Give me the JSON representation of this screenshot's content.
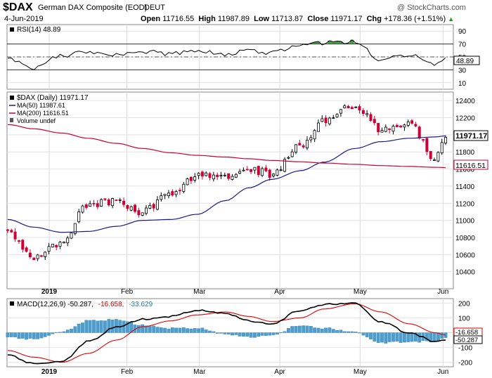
{
  "header": {
    "symbol": "$DAX",
    "name": "German DAX Composite (EOD)",
    "exchange": "DEUT",
    "watermark": "@ StockCharts.com",
    "date": "4-Jun-2019",
    "open_label": "Open",
    "open": "11716.55",
    "high_label": "High",
    "high": "11987.89",
    "low_label": "Low",
    "low": "11713.87",
    "close_label": "Close",
    "close": "11971.17",
    "chg_label": "Chg",
    "chg": "+178.36 (+1.51%)",
    "chg_arrow": "▲"
  },
  "rsi_panel": {
    "legend": "RSI(14) 48.89",
    "value_tag": "48.89",
    "ticks": [
      90,
      70,
      50,
      30,
      10
    ],
    "upper_band": 70,
    "lower_band": 30,
    "mid": 50
  },
  "price_panel": {
    "legend_main": "$DAX (Daily) 11971.17",
    "legend_ma50": "MA(50) 11987.61",
    "legend_ma200": "MA(200) 11616.51",
    "legend_volume": "Volume undef",
    "close_tag": "11971.17",
    "ma200_tag": "11616.51",
    "ticks": [
      12400,
      12200,
      12000,
      11800,
      11600,
      11400,
      11200,
      11000,
      10800,
      10600,
      10400
    ]
  },
  "macd_panel": {
    "legend_main": "MACD(12,26,9) -50.287,",
    "legend_signal": "-16.658,",
    "legend_hist": "-33.629",
    "ticks": [
      200,
      100,
      0,
      -100,
      -200
    ],
    "tag_signal": "-16.658",
    "tag_macd": "-50.287"
  },
  "month_labels": [
    "2019",
    "Feb",
    "Mar",
    "Apr",
    "May",
    "Jun"
  ],
  "colors": {
    "up": "#000000",
    "down": "#cc0033",
    "ma50": "#1a1a8c",
    "ma200": "#cc0033",
    "rsi_fill": "#2e8b2e",
    "macd_line": "#000000",
    "macd_signal": "#e00000",
    "histogram": "#4a9fd0"
  },
  "chart_data": [
    {
      "type": "line",
      "title": "RSI(14)",
      "ylim": [
        0,
        100
      ],
      "x": [
        "2018-12-17",
        "2018-12-27",
        "2019-01-07",
        "2019-01-17",
        "2019-01-28",
        "2019-02-07",
        "2019-02-18",
        "2019-02-28",
        "2019-03-11",
        "2019-03-20",
        "2019-03-29",
        "2019-04-09",
        "2019-04-18",
        "2019-04-30",
        "2019-05-10",
        "2019-05-21",
        "2019-05-31",
        "2019-06-04"
      ],
      "values": [
        48,
        33,
        52,
        57,
        52,
        58,
        55,
        60,
        54,
        60,
        56,
        68,
        72,
        73,
        46,
        53,
        38,
        48.89
      ]
    },
    {
      "type": "line",
      "title": "$DAX (Daily)",
      "ylim": [
        10200,
        12500
      ],
      "x": [
        "2018-12-17",
        "2018-12-27",
        "2019-01-07",
        "2019-01-17",
        "2019-01-28",
        "2019-02-07",
        "2019-02-18",
        "2019-02-28",
        "2019-03-11",
        "2019-03-20",
        "2019-03-29",
        "2019-04-09",
        "2019-04-18",
        "2019-04-30",
        "2019-05-10",
        "2019-05-21",
        "2019-05-31",
        "2019-06-04"
      ],
      "series": [
        {
          "name": "$DAX",
          "values": [
            10870,
            10560,
            10750,
            11180,
            11230,
            11100,
            11310,
            11530,
            11530,
            11600,
            11540,
            11880,
            12180,
            12350,
            12060,
            12120,
            11730,
            11971.17
          ]
        },
        {
          "name": "MA(50)",
          "values": [
            11010,
            10920,
            10860,
            10870,
            10930,
            11000,
            11010,
            11070,
            11230,
            11380,
            11480,
            11580,
            11680,
            11840,
            11920,
            11960,
            11975,
            11987.61
          ]
        },
        {
          "name": "MA(200)",
          "values": [
            12120,
            12070,
            12020,
            11960,
            11900,
            11840,
            11790,
            11760,
            11740,
            11720,
            11700,
            11685,
            11670,
            11655,
            11640,
            11630,
            11620,
            11616.51
          ]
        }
      ]
    },
    {
      "type": "line",
      "title": "MACD(12,26,9)",
      "ylim": [
        -230,
        230
      ],
      "x": [
        "2018-12-17",
        "2018-12-27",
        "2019-01-07",
        "2019-01-17",
        "2019-01-28",
        "2019-02-07",
        "2019-02-18",
        "2019-02-28",
        "2019-03-11",
        "2019-03-20",
        "2019-03-29",
        "2019-04-09",
        "2019-04-18",
        "2019-04-30",
        "2019-05-10",
        "2019-05-21",
        "2019-05-31",
        "2019-06-04"
      ],
      "series": [
        {
          "name": "MACD",
          "values": [
            -150,
            -210,
            -190,
            -60,
            40,
            90,
            110,
            150,
            130,
            80,
            60,
            150,
            190,
            200,
            70,
            0,
            -60,
            -50.287
          ]
        },
        {
          "name": "Signal",
          "values": [
            -120,
            -165,
            -200,
            -140,
            -50,
            40,
            80,
            120,
            140,
            110,
            75,
            100,
            160,
            195,
            140,
            60,
            0,
            -16.658
          ]
        }
      ]
    }
  ]
}
